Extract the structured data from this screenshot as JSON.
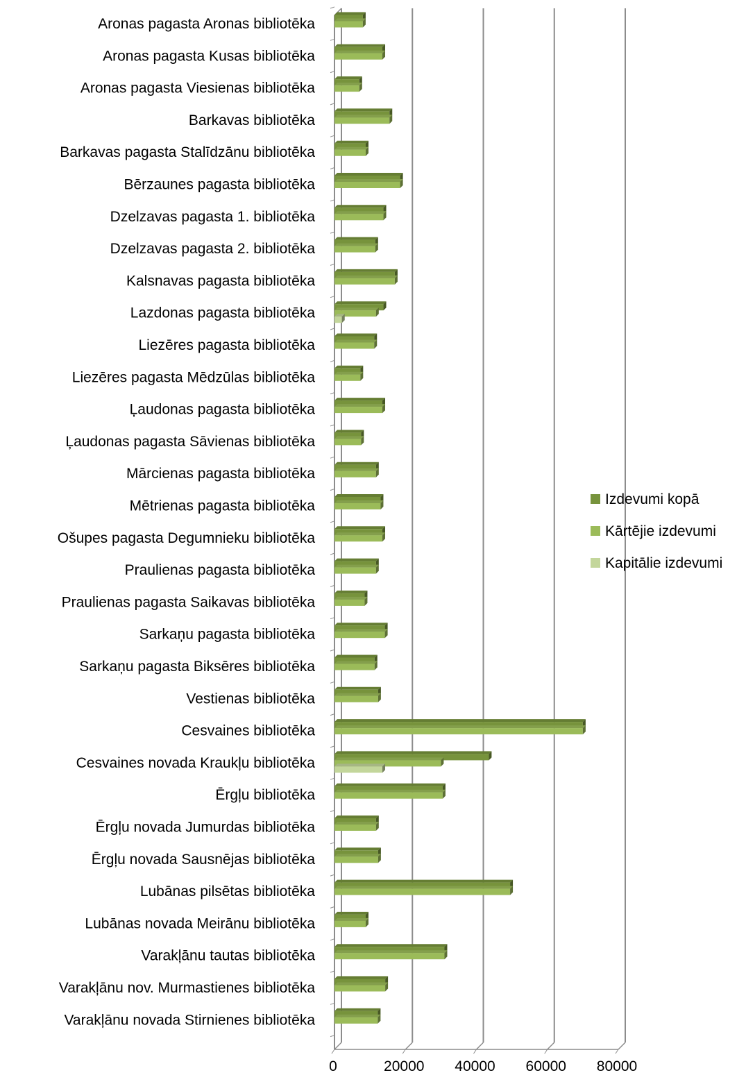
{
  "chart_data": {
    "type": "bar",
    "orientation": "horizontal",
    "style": "3d-clustered",
    "title": "",
    "xlabel": "",
    "ylabel": "",
    "xlim": [
      0,
      80000
    ],
    "x_ticks": [
      "0",
      "20000",
      "40000",
      "60000",
      "80000"
    ],
    "grid": "vertical",
    "legend_position": "right",
    "categories": [
      "Aronas pagasta Aronas bibliotēka",
      "Aronas pagasta Kusas bibliotēka",
      "Aronas pagasta Viesienas bibliotēka",
      "Barkavas bibliotēka",
      "Barkavas pagasta Stalīdzānu bibliotēka",
      "Bērzaunes pagasta bibliotēka",
      "Dzelzavas pagasta 1. bibliotēka",
      "Dzelzavas pagasta 2. bibliotēka",
      "Kalsnavas pagasta bibliotēka",
      "Lazdonas pagasta bibliotēka",
      "Liezēres pagasta bibliotēka",
      "Liezēres pagasta Mēdzūlas bibliotēka",
      "Ļaudonas pagasta bibliotēka",
      "Ļaudonas pagasta Sāvienas bibliotēka",
      "Mārcienas pagasta bibliotēka",
      "Mētrienas pagasta bibliotēka",
      "Ošupes pagasta Degumnieku bibliotēka",
      "Praulienas pagasta bibliotēka",
      "Praulienas pagasta  Saikavas bibliotēka",
      "Sarkaņu pagasta bibliotēka",
      "Sarkaņu pagasta Biksēres bibliotēka",
      "Vestienas  bibliotēka",
      "Cesvaines bibliotēka",
      "Cesvaines novada Kraukļu bibliotēka",
      "Ērgļu   bibliotēka",
      "Ērgļu novada Jumurdas bibliotēka",
      "Ērgļu novada Sausnējas bibliotēka",
      "Lubānas pilsētas bibliotēka",
      "Lubānas novada Meirānu bibliotēka ",
      "Varakļānu  tautas bibliotēka",
      "Varakļānu nov. Murmastienes  bibliotēka",
      "Varakļānu novada Stirnienes bibliotēka"
    ],
    "series": [
      {
        "name": "Izdevumi kopā",
        "color": "#77933C",
        "values": [
          8000,
          13500,
          7000,
          15500,
          8800,
          18500,
          13800,
          11500,
          17000,
          13800,
          11200,
          7300,
          13500,
          7500,
          11700,
          13000,
          13500,
          11700,
          8500,
          14200,
          11300,
          12300,
          70000,
          43500,
          30500,
          11700,
          12300,
          49500,
          8800,
          31000,
          14300,
          12200
        ]
      },
      {
        "name": "Kārtējie izdevumi",
        "color": "#9BBB59",
        "values": [
          8000,
          13500,
          7000,
          15500,
          8800,
          18500,
          13800,
          11500,
          17000,
          11700,
          11200,
          7300,
          13500,
          7500,
          11700,
          13000,
          13500,
          11700,
          8500,
          14200,
          11300,
          12300,
          70000,
          30000,
          30500,
          11700,
          12300,
          49500,
          8800,
          31000,
          14300,
          12200
        ]
      },
      {
        "name": "Kapitālie izdevumi",
        "color": "#C3D69B",
        "values": [
          0,
          0,
          0,
          0,
          0,
          0,
          0,
          0,
          0,
          2100,
          0,
          0,
          0,
          0,
          0,
          0,
          0,
          0,
          0,
          0,
          0,
          0,
          0,
          13500,
          0,
          0,
          0,
          0,
          0,
          0,
          0,
          0
        ]
      }
    ]
  }
}
